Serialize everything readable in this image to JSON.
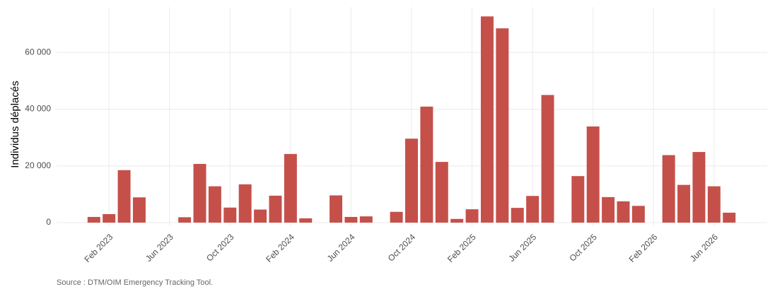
{
  "chart_data": {
    "type": "bar",
    "y_label": "Individus déplacés",
    "caption": "Source : DTM/OIM Emergency Tracking Tool.",
    "color": "#c5504a",
    "grid": true,
    "x": [
      "2023-01",
      "2023-02",
      "2023-03",
      "2023-04",
      "2023-07",
      "2023-08",
      "2023-09",
      "2023-10",
      "2023-11",
      "2023-12",
      "2024-01",
      "2024-02",
      "2024-03",
      "2024-05",
      "2024-06",
      "2024-07",
      "2024-09",
      "2024-10",
      "2024-11",
      "2024-12",
      "2025-01",
      "2025-02",
      "2025-03",
      "2025-04",
      "2025-05",
      "2025-06",
      "2025-07",
      "2025-09",
      "2025-10",
      "2025-11",
      "2025-12",
      "2026-01",
      "2026-03",
      "2026-04",
      "2026-05",
      "2026-06",
      "2026-07"
    ],
    "values": [
      2000,
      3000,
      18500,
      8900,
      1900,
      20700,
      12800,
      5300,
      13500,
      4600,
      9500,
      24200,
      1500,
      9600,
      2000,
      2200,
      3800,
      29600,
      40900,
      21400,
      1300,
      4700,
      72700,
      68500,
      5200,
      9400,
      45000,
      16400,
      33900,
      9000,
      7500,
      5900,
      23800,
      13300,
      24900,
      12800,
      3500
    ],
    "xlim": [
      "2022-11",
      "2026-09"
    ],
    "xticks": [
      {
        "value": "2023-02",
        "label": "Feb 2023"
      },
      {
        "value": "2023-06",
        "label": "Jun 2023"
      },
      {
        "value": "2023-10",
        "label": "Oct 2023"
      },
      {
        "value": "2024-02",
        "label": "Feb 2024"
      },
      {
        "value": "2024-06",
        "label": "Jun 2024"
      },
      {
        "value": "2024-10",
        "label": "Oct 2024"
      },
      {
        "value": "2025-02",
        "label": "Feb 2025"
      },
      {
        "value": "2025-06",
        "label": "Jun 2025"
      },
      {
        "value": "2025-10",
        "label": "Oct 2025"
      },
      {
        "value": "2026-02",
        "label": "Feb 2026"
      },
      {
        "value": "2026-06",
        "label": "Jun 2026"
      }
    ],
    "ylim": [
      -1250,
      76000
    ],
    "yticks": [
      {
        "value": 0,
        "label": "0"
      },
      {
        "value": 20000,
        "label": "20 000"
      },
      {
        "value": 40000,
        "label": "40 000"
      },
      {
        "value": 60000,
        "label": "60 000"
      }
    ]
  }
}
